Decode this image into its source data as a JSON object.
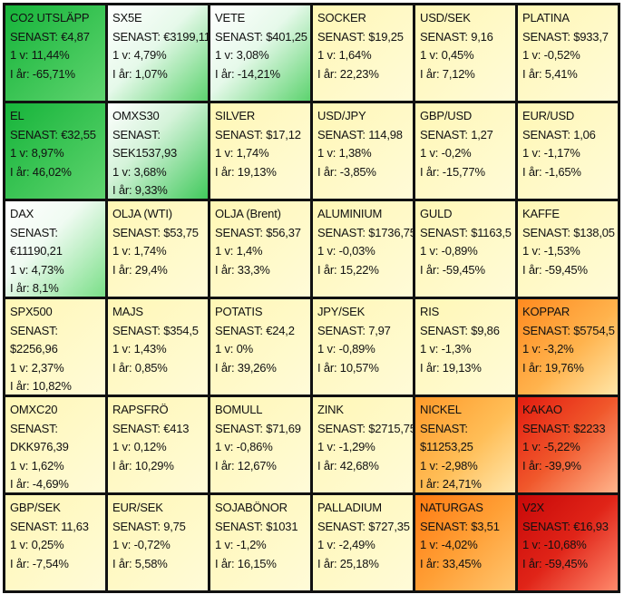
{
  "tiles": [
    {
      "name": "CO2 UTSLÄPP",
      "lines": [
        "SENAST: €4,87",
        "1 v: 11,44%",
        "I år: -65,71%"
      ],
      "color": "g1"
    },
    {
      "name": "SX5E",
      "lines": [
        "SENAST: €3199,11",
        "1 v: 4,79%",
        "I år: 1,07%"
      ],
      "color": "g2"
    },
    {
      "name": "VETE",
      "lines": [
        "SENAST: $401,25",
        "1 v: 3,08%",
        "I år: -14,21%"
      ],
      "color": "g2"
    },
    {
      "name": "SOCKER",
      "lines": [
        "SENAST: $19,25",
        "1 v: 1,64%",
        "I år: 22,23%"
      ],
      "color": "y"
    },
    {
      "name": "USD/SEK",
      "lines": [
        "SENAST: 9,16",
        "1 v: 0,45%",
        "I år: 7,12%"
      ],
      "color": "y"
    },
    {
      "name": "PLATINA",
      "lines": [
        "SENAST: $933,7",
        "1 v: -0,52%",
        "I år: 5,41%"
      ],
      "color": "y"
    },
    {
      "name": "EL",
      "lines": [
        "SENAST: €32,55",
        "1 v: 8,97%",
        "I år: 46,02%"
      ],
      "color": "g1"
    },
    {
      "name": "OMXS30",
      "lines": [
        "SENAST:",
        "SEK1537,93",
        "1 v: 3,68%",
        "I år: 9,33%"
      ],
      "color": "g3"
    },
    {
      "name": "SILVER",
      "lines": [
        "SENAST: $17,12",
        "1 v: 1,74%",
        "I år: 19,13%"
      ],
      "color": "y"
    },
    {
      "name": "USD/JPY",
      "lines": [
        "SENAST: 114,98",
        "1 v: 1,38%",
        "I år: -3,85%"
      ],
      "color": "y"
    },
    {
      "name": "GBP/USD",
      "lines": [
        "SENAST: 1,27",
        "1 v: -0,2%",
        "I år: -15,77%"
      ],
      "color": "y"
    },
    {
      "name": "EUR/USD",
      "lines": [
        "SENAST: 1,06",
        "1 v: -1,17%",
        "I år: -1,65%"
      ],
      "color": "y"
    },
    {
      "name": "DAX",
      "lines": [
        "SENAST:",
        "€11190,21",
        "1 v: 4,73%",
        "I år: 8,1%"
      ],
      "color": "g4"
    },
    {
      "name": "OLJA (WTI)",
      "lines": [
        "SENAST: $53,75",
        "1 v: 1,74%",
        "I år: 29,4%"
      ],
      "color": "y"
    },
    {
      "name": "OLJA (Brent)",
      "lines": [
        "SENAST: $56,37",
        "1 v: 1,4%",
        "I år: 33,3%"
      ],
      "color": "y"
    },
    {
      "name": "ALUMINIUM",
      "lines": [
        "SENAST: $1736,75",
        "1 v: -0,03%",
        "I år: 15,22%"
      ],
      "color": "y"
    },
    {
      "name": "GULD",
      "lines": [
        "SENAST: $1163,5",
        "1 v: -0,89%",
        "I år: -59,45%"
      ],
      "color": "y"
    },
    {
      "name": "KAFFE",
      "lines": [
        "SENAST: $138,05",
        "1 v: -1,53%",
        "I år: -59,45%"
      ],
      "color": "y"
    },
    {
      "name": "SPX500",
      "lines": [
        "SENAST:",
        "$2256,96",
        "1 v: 2,37%",
        "I år: 10,82%"
      ],
      "color": "y"
    },
    {
      "name": "MAJS",
      "lines": [
        "SENAST: $354,5",
        "1 v: 1,43%",
        "I år: 0,85%"
      ],
      "color": "y"
    },
    {
      "name": "POTATIS",
      "lines": [
        "SENAST: €24,2",
        "1 v: 0%",
        "I år: 39,26%"
      ],
      "color": "y"
    },
    {
      "name": "JPY/SEK",
      "lines": [
        "SENAST: 7,97",
        "1 v: -0,89%",
        "I år: 10,57%"
      ],
      "color": "y"
    },
    {
      "name": "RIS",
      "lines": [
        "SENAST: $9,86",
        "1 v: -1,3%",
        "I år: 19,13%"
      ],
      "color": "y"
    },
    {
      "name": "KOPPAR",
      "lines": [
        "SENAST: $5754,5",
        "1 v: -3,2%",
        "I år: 19,76%"
      ],
      "color": "o1"
    },
    {
      "name": "OMXC20",
      "lines": [
        "SENAST:",
        "DKK976,39",
        "1 v: 1,62%",
        "I år: -4,69%"
      ],
      "color": "y"
    },
    {
      "name": "RAPSFRÖ",
      "lines": [
        "SENAST: €413",
        "1 v: 0,12%",
        "I år: 10,29%"
      ],
      "color": "y"
    },
    {
      "name": "BOMULL",
      "lines": [
        "SENAST: $71,69",
        "1 v: -0,86%",
        "I år: 12,67%"
      ],
      "color": "y"
    },
    {
      "name": "ZINK",
      "lines": [
        "SENAST: $2715,75",
        "1 v: -1,29%",
        "I år: 42,68%"
      ],
      "color": "y"
    },
    {
      "name": "NICKEL",
      "lines": [
        "SENAST:",
        "$11253,25",
        "1 v: -2,98%",
        "I år: 24,71%"
      ],
      "color": "o2"
    },
    {
      "name": "KAKAO",
      "lines": [
        "SENAST: $2233",
        "1 v: -5,22%",
        "I år: -39,9%"
      ],
      "color": "r1"
    },
    {
      "name": "GBP/SEK",
      "lines": [
        "SENAST: 11,63",
        "1 v: 0,25%",
        "I år: -7,54%"
      ],
      "color": "y"
    },
    {
      "name": "EUR/SEK",
      "lines": [
        "SENAST: 9,75",
        "1 v: -0,72%",
        "I år: 5,58%"
      ],
      "color": "y"
    },
    {
      "name": "SOJABÖNOR",
      "lines": [
        "SENAST: $1031",
        "1 v: -1,2%",
        "I år: 16,15%"
      ],
      "color": "y"
    },
    {
      "name": "PALLADIUM",
      "lines": [
        "SENAST: $727,35",
        "1 v: -2,49%",
        "I år: 25,18%"
      ],
      "color": "y"
    },
    {
      "name": "NATURGAS",
      "lines": [
        "SENAST: $3,51",
        "1 v: -4,02%",
        "I år: 33,45%"
      ],
      "color": "o3"
    },
    {
      "name": "V2X",
      "lines": [
        "SENAST: €16,93",
        "1 v: -10,68%",
        "I år: -59,45%"
      ],
      "color": "r2"
    }
  ]
}
